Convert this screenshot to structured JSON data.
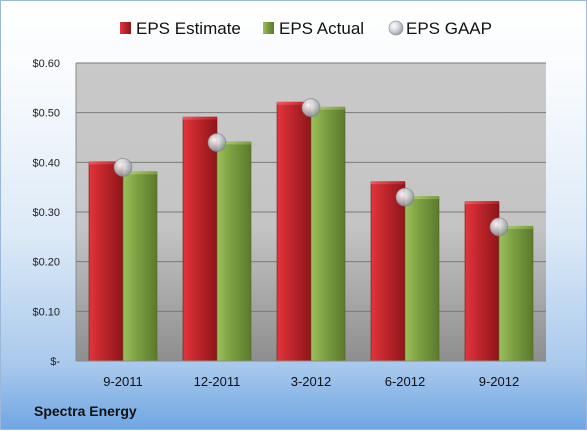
{
  "chart_data": {
    "type": "bar",
    "title": "",
    "xlabel": "",
    "ylabel": "",
    "categories": [
      "9-2011",
      "12-2011",
      "3-2012",
      "6-2012",
      "9-2012"
    ],
    "series": [
      {
        "name": "EPS Estimate",
        "type": "bar",
        "color": "#c0272d",
        "values": [
          0.4,
          0.49,
          0.52,
          0.36,
          0.32
        ]
      },
      {
        "name": "EPS Actual",
        "type": "bar",
        "color": "#7da043",
        "values": [
          0.38,
          0.44,
          0.51,
          0.33,
          0.27
        ]
      },
      {
        "name": "EPS GAAP",
        "type": "scatter",
        "color": "#b8bcc4",
        "values": [
          0.39,
          0.44,
          0.51,
          0.33,
          0.27
        ]
      }
    ],
    "ylim": [
      0,
      0.6
    ],
    "yticks": [
      0,
      0.1,
      0.2,
      0.3,
      0.4,
      0.5,
      0.6
    ],
    "ytick_labels": [
      "$-",
      "$0.10",
      "$0.20",
      "$0.30",
      "$0.40",
      "$0.50",
      "$0.60"
    ],
    "grid": true,
    "legend_position": "top"
  },
  "footer": {
    "company": "Spectra Energy"
  }
}
